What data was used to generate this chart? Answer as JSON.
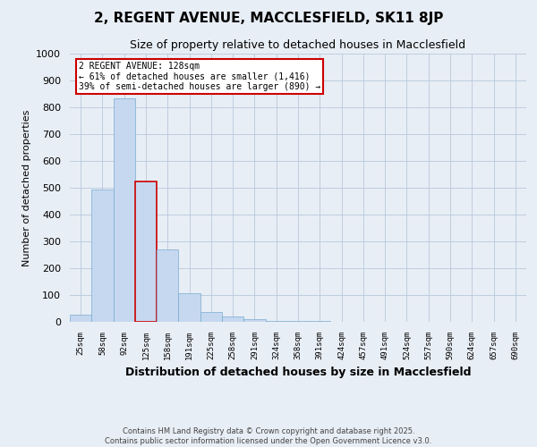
{
  "title": "2, REGENT AVENUE, MACCLESFIELD, SK11 8JP",
  "subtitle": "Size of property relative to detached houses in Macclesfield",
  "xlabel": "Distribution of detached houses by size in Macclesfield",
  "ylabel": "Number of detached properties",
  "categories": [
    "25sqm",
    "58sqm",
    "92sqm",
    "125sqm",
    "158sqm",
    "191sqm",
    "225sqm",
    "258sqm",
    "291sqm",
    "324sqm",
    "358sqm",
    "391sqm",
    "424sqm",
    "457sqm",
    "491sqm",
    "524sqm",
    "557sqm",
    "590sqm",
    "624sqm",
    "657sqm",
    "690sqm"
  ],
  "values": [
    28,
    493,
    835,
    523,
    270,
    108,
    37,
    20,
    10,
    5,
    3,
    5,
    0,
    0,
    0,
    0,
    0,
    0,
    0,
    0,
    0
  ],
  "bar_color": "#c5d8f0",
  "bar_edge_color": "#7aaad0",
  "highlight_bar_index": 3,
  "annotation_text_line1": "2 REGENT AVENUE: 128sqm",
  "annotation_text_line2": "← 61% of detached houses are smaller (1,416)",
  "annotation_text_line3": "39% of semi-detached houses are larger (890) →",
  "annotation_box_facecolor": "#ffffff",
  "annotation_box_edgecolor": "#cc0000",
  "ylim": [
    0,
    1000
  ],
  "yticks": [
    0,
    100,
    200,
    300,
    400,
    500,
    600,
    700,
    800,
    900,
    1000
  ],
  "background_color": "#e8eef5",
  "plot_background_color": "#e8eef5",
  "footer_line1": "Contains HM Land Registry data © Crown copyright and database right 2025.",
  "footer_line2": "Contains public sector information licensed under the Open Government Licence v3.0."
}
